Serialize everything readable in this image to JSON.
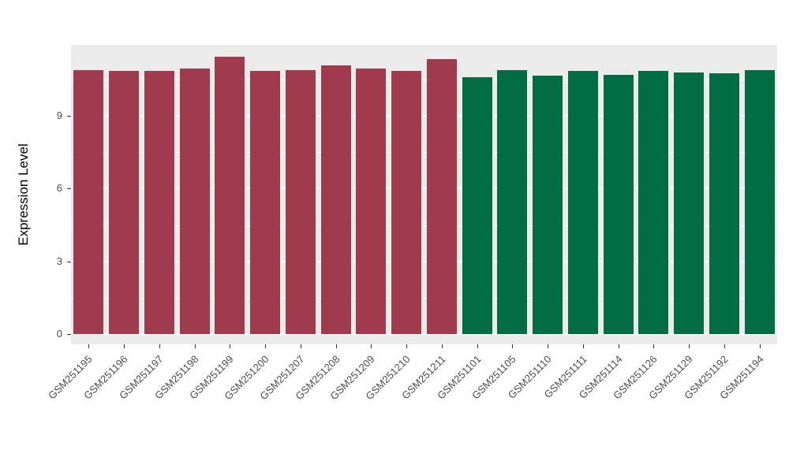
{
  "chart_data": {
    "type": "bar",
    "title": "",
    "xlabel": "",
    "ylabel": "Expression Level",
    "ylim": [
      0,
      12
    ],
    "yticks": [
      0,
      3,
      6,
      9
    ],
    "yticks_minor": [
      1.5,
      4.5,
      7.5,
      10.5
    ],
    "grid": true,
    "legend_position": "none",
    "panel_background": "#EBEBEB",
    "grid_color": "#FFFFFF",
    "axis_text_color": "#4D4D4D",
    "group_colors": {
      "group1": "#9F3B4D",
      "group2": "#026C45"
    },
    "categories": [
      "GSM251195",
      "GSM251196",
      "GSM251197",
      "GSM251198",
      "GSM251199",
      "GSM251200",
      "GSM251207",
      "GSM251208",
      "GSM251209",
      "GSM251210",
      "GSM251211",
      "GSM251101",
      "GSM251105",
      "GSM251110",
      "GSM251111",
      "GSM251114",
      "GSM251126",
      "GSM251129",
      "GSM251192",
      "GSM251194"
    ],
    "values": [
      10.9,
      10.85,
      10.85,
      10.95,
      11.45,
      10.85,
      10.9,
      11.1,
      10.95,
      10.85,
      11.35,
      10.6,
      10.9,
      10.65,
      10.85,
      10.7,
      10.85,
      10.8,
      10.75,
      10.9
    ],
    "bar_colors": [
      "#9F3B4D",
      "#9F3B4D",
      "#9F3B4D",
      "#9F3B4D",
      "#9F3B4D",
      "#9F3B4D",
      "#9F3B4D",
      "#9F3B4D",
      "#9F3B4D",
      "#9F3B4D",
      "#9F3B4D",
      "#026C45",
      "#026C45",
      "#026C45",
      "#026C45",
      "#026C45",
      "#026C45",
      "#026C45",
      "#026C45",
      "#026C45"
    ]
  }
}
